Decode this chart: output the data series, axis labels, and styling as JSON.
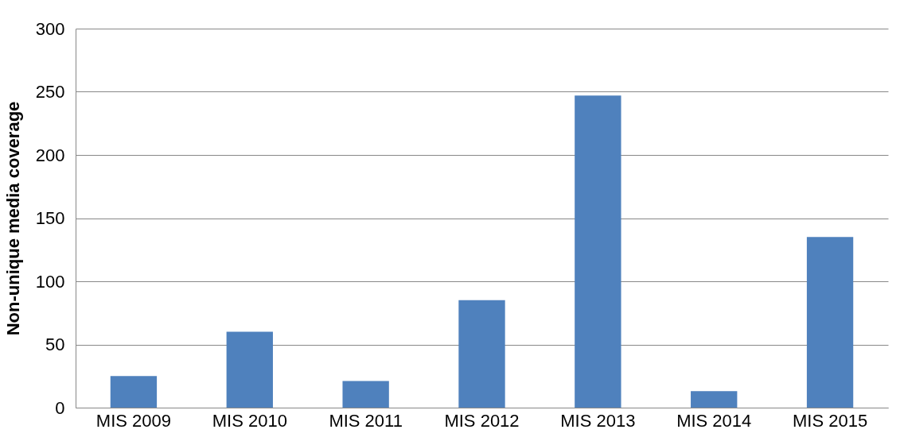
{
  "chart_data": {
    "type": "bar",
    "ylabel": "Non-unique media coverage",
    "categories": [
      "MIS 2009",
      "MIS 2010",
      "MIS 2011",
      "MIS 2012",
      "MIS 2013",
      "MIS 2014",
      "MIS 2015"
    ],
    "values": [
      25,
      60,
      21,
      85,
      247,
      13,
      135
    ],
    "color": "#4f81bd",
    "ylim": [
      0,
      300
    ],
    "yticks": [
      0,
      50,
      100,
      150,
      200,
      250,
      300
    ],
    "grid": "y"
  }
}
